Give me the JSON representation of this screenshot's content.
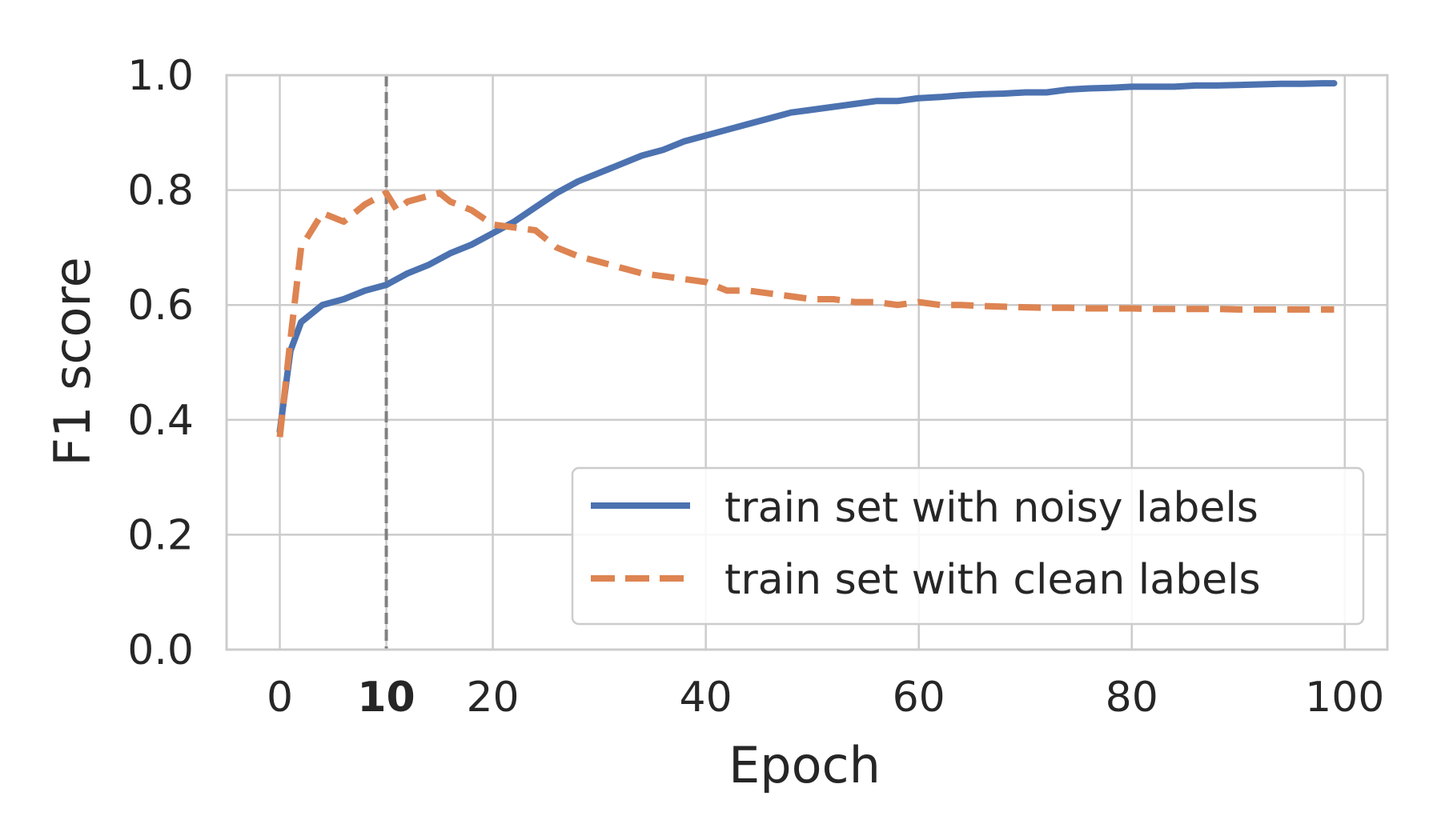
{
  "chart_data": {
    "type": "line",
    "xlabel": "Epoch",
    "ylabel": "F1 score",
    "xlim": [
      -5,
      104
    ],
    "ylim": [
      0.0,
      1.0
    ],
    "xticks": [
      0,
      10,
      20,
      40,
      60,
      80,
      100
    ],
    "xtick_labels": [
      "0",
      "10",
      "20",
      "40",
      "60",
      "80",
      "100"
    ],
    "highlighted_xtick": "10",
    "yticks": [
      0.0,
      0.2,
      0.4,
      0.6,
      0.8,
      1.0
    ],
    "ytick_labels": [
      "0.0",
      "0.2",
      "0.4",
      "0.6",
      "0.8",
      "1.0"
    ],
    "grid": true,
    "legend_position": "lower-right",
    "vline": {
      "x": 10,
      "color": "#808080",
      "style": "dashed"
    },
    "series": [
      {
        "name": "train set with noisy labels",
        "color": "#4C72B0",
        "style": "solid",
        "x": [
          0,
          1,
          2,
          4,
          6,
          8,
          10,
          12,
          14,
          16,
          18,
          20,
          22,
          24,
          26,
          28,
          30,
          32,
          34,
          36,
          38,
          40,
          42,
          44,
          46,
          48,
          50,
          52,
          54,
          56,
          58,
          60,
          62,
          64,
          66,
          68,
          70,
          72,
          74,
          76,
          78,
          80,
          82,
          84,
          86,
          88,
          90,
          92,
          94,
          96,
          98,
          99
        ],
        "y": [
          0.38,
          0.52,
          0.57,
          0.6,
          0.61,
          0.625,
          0.635,
          0.655,
          0.67,
          0.69,
          0.705,
          0.725,
          0.745,
          0.77,
          0.795,
          0.815,
          0.83,
          0.845,
          0.86,
          0.87,
          0.885,
          0.895,
          0.905,
          0.915,
          0.925,
          0.935,
          0.94,
          0.945,
          0.95,
          0.955,
          0.955,
          0.96,
          0.962,
          0.965,
          0.967,
          0.968,
          0.97,
          0.97,
          0.975,
          0.977,
          0.978,
          0.98,
          0.98,
          0.98,
          0.982,
          0.982,
          0.983,
          0.984,
          0.985,
          0.985,
          0.986,
          0.986
        ]
      },
      {
        "name": "train set with clean labels",
        "color": "#DD8452",
        "style": "dashed",
        "x": [
          0,
          1,
          2,
          4,
          6,
          8,
          10,
          11,
          12,
          14,
          15,
          16,
          18,
          20,
          22,
          24,
          26,
          28,
          30,
          32,
          34,
          36,
          38,
          40,
          42,
          44,
          46,
          48,
          50,
          52,
          54,
          56,
          58,
          60,
          62,
          64,
          66,
          68,
          70,
          72,
          74,
          76,
          78,
          80,
          82,
          84,
          86,
          88,
          90,
          92,
          94,
          96,
          98,
          99
        ],
        "y": [
          0.37,
          0.54,
          0.7,
          0.76,
          0.745,
          0.775,
          0.795,
          0.765,
          0.78,
          0.79,
          0.795,
          0.78,
          0.765,
          0.74,
          0.735,
          0.73,
          0.7,
          0.685,
          0.675,
          0.665,
          0.655,
          0.65,
          0.645,
          0.64,
          0.625,
          0.625,
          0.62,
          0.615,
          0.61,
          0.61,
          0.605,
          0.605,
          0.6,
          0.605,
          0.6,
          0.6,
          0.598,
          0.597,
          0.596,
          0.595,
          0.595,
          0.594,
          0.594,
          0.594,
          0.593,
          0.593,
          0.593,
          0.593,
          0.592,
          0.592,
          0.592,
          0.592,
          0.592,
          0.592
        ]
      }
    ]
  }
}
